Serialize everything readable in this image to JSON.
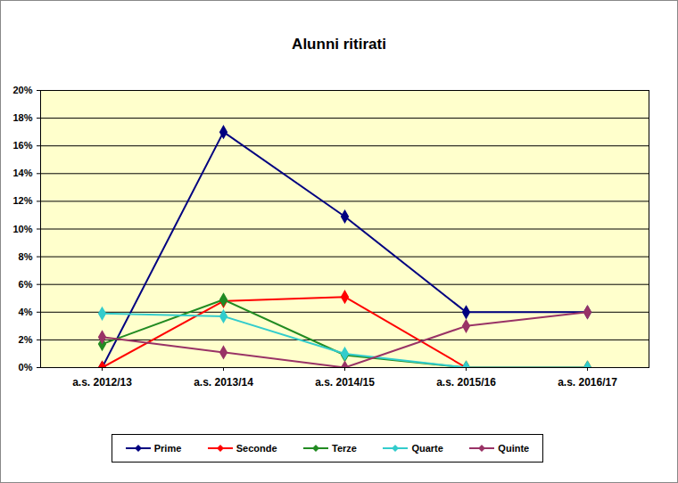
{
  "chart_data": {
    "type": "line",
    "title": "Alunni ritirati",
    "categories": [
      "a.s. 2012/13",
      "a.s. 2013/14",
      "a.s. 2014/15",
      "a.s. 2015/16",
      "a.s. 2016/17"
    ],
    "series": [
      {
        "name": "Prime",
        "color": "#000080",
        "values": [
          0,
          17,
          10.9,
          4,
          4
        ]
      },
      {
        "name": "Seconde",
        "color": "#ff0000",
        "values": [
          0,
          4.8,
          5.1,
          0,
          0
        ]
      },
      {
        "name": "Terze",
        "color": "#228b22",
        "values": [
          1.7,
          4.9,
          0.9,
          0,
          0
        ]
      },
      {
        "name": "Quarte",
        "color": "#33cccc",
        "values": [
          3.9,
          3.7,
          1.0,
          0,
          0
        ]
      },
      {
        "name": "Quinte",
        "color": "#993366",
        "values": [
          2.2,
          1.1,
          0,
          3,
          4
        ]
      }
    ],
    "ylim": [
      0,
      20
    ],
    "yticks": [
      {
        "value": 0,
        "label": "0%"
      },
      {
        "value": 2,
        "label": "2%"
      },
      {
        "value": 4,
        "label": "4%"
      },
      {
        "value": 6,
        "label": "6%"
      },
      {
        "value": 8,
        "label": "8%"
      },
      {
        "value": 10,
        "label": "10%"
      },
      {
        "value": 12,
        "label": "12%"
      },
      {
        "value": 14,
        "label": "14%"
      },
      {
        "value": 16,
        "label": "16%"
      },
      {
        "value": 18,
        "label": "18%"
      },
      {
        "value": 20,
        "label": "20%"
      }
    ],
    "grid": true,
    "legend": "bottom",
    "marker": "diamond"
  }
}
